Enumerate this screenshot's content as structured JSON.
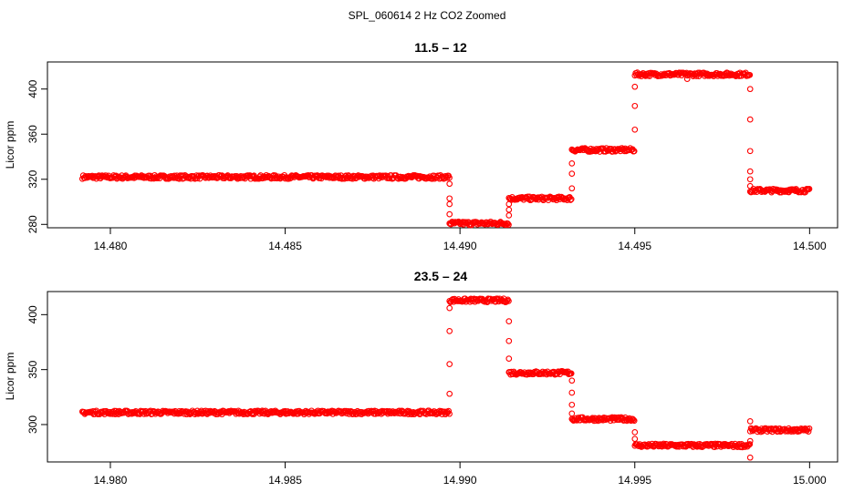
{
  "figure_title": "SPL_060614  2 Hz CO2 Zoomed",
  "colors": {
    "points": "#ff0000",
    "axes": "#000000",
    "background": "#ffffff"
  },
  "chart_data": [
    {
      "type": "scatter",
      "title": "11.5 – 12",
      "xlabel": "",
      "ylabel": "Licor ppm",
      "xlim": [
        14.4782,
        14.5008
      ],
      "ylim": [
        277,
        424
      ],
      "xticks": [
        14.48,
        14.485,
        14.49,
        14.495,
        14.5
      ],
      "xtick_labels": [
        "14.480",
        "14.485",
        "14.490",
        "14.495",
        "14.500"
      ],
      "yticks": [
        280,
        320,
        360,
        400
      ],
      "ytick_labels": [
        "280",
        "320",
        "360",
        "400"
      ],
      "marker": "open-circle",
      "segments": [
        {
          "x_start": 14.4792,
          "x_end": 14.4897,
          "y": 322
        },
        {
          "x_start": 14.4897,
          "x_end": 14.4914,
          "y": 281
        },
        {
          "x_start": 14.4914,
          "x_end": 14.4932,
          "y": 303
        },
        {
          "x_start": 14.4932,
          "x_end": 14.495,
          "y": 346
        },
        {
          "x_start": 14.495,
          "x_end": 14.4983,
          "y": 413
        },
        {
          "x_start": 14.4983,
          "x_end": 14.5,
          "y": 310
        }
      ],
      "transitions": [
        {
          "x": 14.4897,
          "y": [
            316,
            303,
            298,
            289
          ]
        },
        {
          "x": 14.4914,
          "y": [
            288,
            293,
            298
          ]
        },
        {
          "x": 14.4932,
          "y": [
            312,
            325,
            334
          ]
        },
        {
          "x": 14.495,
          "y": [
            364,
            385,
            402
          ]
        },
        {
          "x": 14.4983,
          "y": [
            400,
            373,
            345,
            327,
            320,
            314
          ]
        }
      ],
      "outliers": [
        {
          "x": 14.4965,
          "y": 409
        }
      ]
    },
    {
      "type": "scatter",
      "title": "23.5 – 24",
      "xlabel": "",
      "ylabel": "Licor ppm",
      "xlim": [
        14.9782,
        15.0008
      ],
      "ylim": [
        266,
        421
      ],
      "xticks": [
        14.98,
        14.985,
        14.99,
        14.995,
        15.0
      ],
      "xtick_labels": [
        "14.980",
        "14.985",
        "14.990",
        "14.995",
        "15.000"
      ],
      "yticks": [
        300,
        350,
        400
      ],
      "ytick_labels": [
        "300",
        "350",
        "400"
      ],
      "marker": "open-circle",
      "segments": [
        {
          "x_start": 14.9792,
          "x_end": 14.9897,
          "y": 311
        },
        {
          "x_start": 14.9897,
          "x_end": 14.9914,
          "y": 413
        },
        {
          "x_start": 14.9914,
          "x_end": 14.9932,
          "y": 347
        },
        {
          "x_start": 14.9932,
          "x_end": 14.995,
          "y": 305
        },
        {
          "x_start": 14.995,
          "x_end": 14.9983,
          "y": 281
        },
        {
          "x_start": 14.9983,
          "x_end": 15.0,
          "y": 295
        }
      ],
      "transitions": [
        {
          "x": 14.9897,
          "y": [
            328,
            355,
            385,
            406
          ]
        },
        {
          "x": 14.9914,
          "y": [
            394,
            376,
            360
          ]
        },
        {
          "x": 14.9932,
          "y": [
            340,
            329,
            318,
            310
          ]
        },
        {
          "x": 14.995,
          "y": [
            293,
            287
          ]
        },
        {
          "x": 14.9983,
          "y": [
            303,
            270,
            285
          ]
        }
      ],
      "outliers": []
    }
  ]
}
